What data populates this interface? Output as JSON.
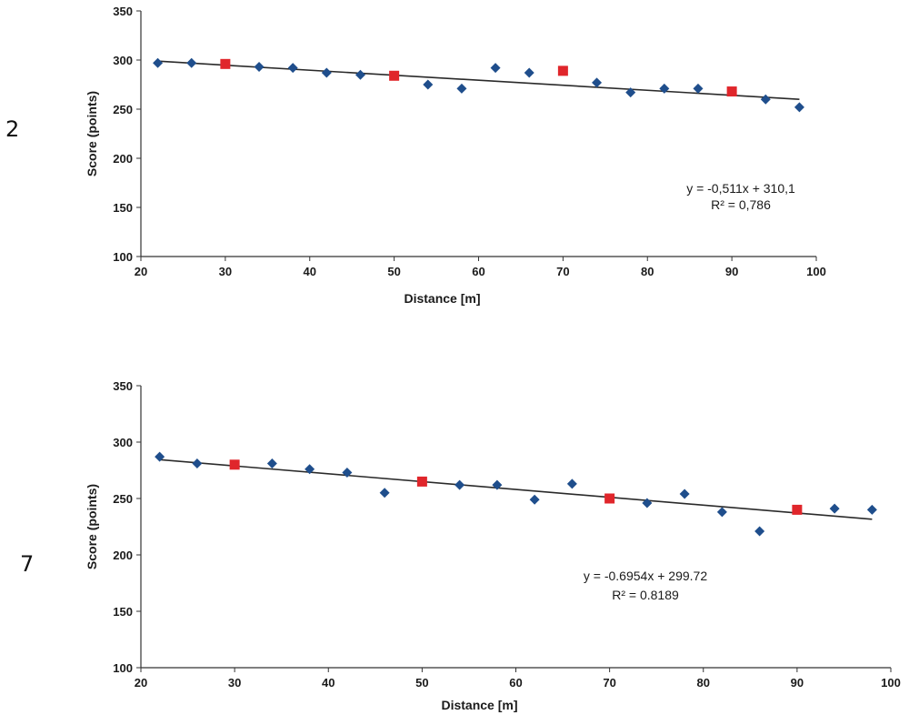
{
  "panels": [
    {
      "label": "2"
    },
    {
      "label": "7"
    }
  ],
  "colors": {
    "blue": "#1f4e8c",
    "red": "#e0262b",
    "trend": "#2a2a2a",
    "axis": "#333333"
  },
  "chart_data": [
    {
      "type": "scatter",
      "xlabel": "Distance [m]",
      "ylabel": "Score (points)",
      "xlim": [
        20,
        100
      ],
      "ylim": [
        100,
        350
      ],
      "xticks": [
        "20",
        "30",
        "40",
        "50",
        "60",
        "70",
        "80",
        "90",
        "100"
      ],
      "yticks": [
        "100",
        "150",
        "200",
        "250",
        "300",
        "350"
      ],
      "series": [
        {
          "name": "blue",
          "marker": "diamond",
          "x": [
            22,
            26,
            34,
            38,
            42,
            46,
            54,
            58,
            62,
            66,
            74,
            78,
            82,
            86,
            94,
            98
          ],
          "y": [
            297,
            297,
            293,
            292,
            287,
            285,
            275,
            271,
            292,
            287,
            277,
            267,
            271,
            271,
            260,
            252
          ]
        },
        {
          "name": "red",
          "marker": "square",
          "x": [
            30,
            50,
            70,
            90
          ],
          "y": [
            296,
            284,
            289,
            268
          ]
        }
      ],
      "trendline": {
        "slope": -0.511,
        "intercept": 310.1,
        "x_range": [
          22,
          98
        ]
      },
      "equation": "y = -0,511x + 310,1",
      "r2": "R² = 0,786"
    },
    {
      "type": "scatter",
      "xlabel": "Distance [m]",
      "ylabel": "Score (points)",
      "xlim": [
        20,
        100
      ],
      "ylim": [
        100,
        350
      ],
      "xticks": [
        "20",
        "30",
        "40",
        "50",
        "60",
        "70",
        "80",
        "90",
        "100"
      ],
      "yticks": [
        "100",
        "150",
        "200",
        "250",
        "300",
        "350"
      ],
      "series": [
        {
          "name": "blue",
          "marker": "diamond",
          "x": [
            22,
            26,
            34,
            38,
            42,
            46,
            54,
            58,
            62,
            66,
            74,
            78,
            82,
            86,
            94,
            98
          ],
          "y": [
            287,
            281,
            281,
            276,
            273,
            255,
            262,
            262,
            249,
            263,
            246,
            254,
            238,
            221,
            241,
            240
          ]
        },
        {
          "name": "red",
          "marker": "square",
          "x": [
            30,
            50,
            70,
            90
          ],
          "y": [
            280,
            265,
            250,
            240
          ]
        }
      ],
      "trendline": {
        "slope": -0.6954,
        "intercept": 299.72,
        "x_range": [
          22,
          98
        ]
      },
      "equation": "y = -0.6954x + 299.72",
      "r2": "R² = 0.8189"
    }
  ]
}
